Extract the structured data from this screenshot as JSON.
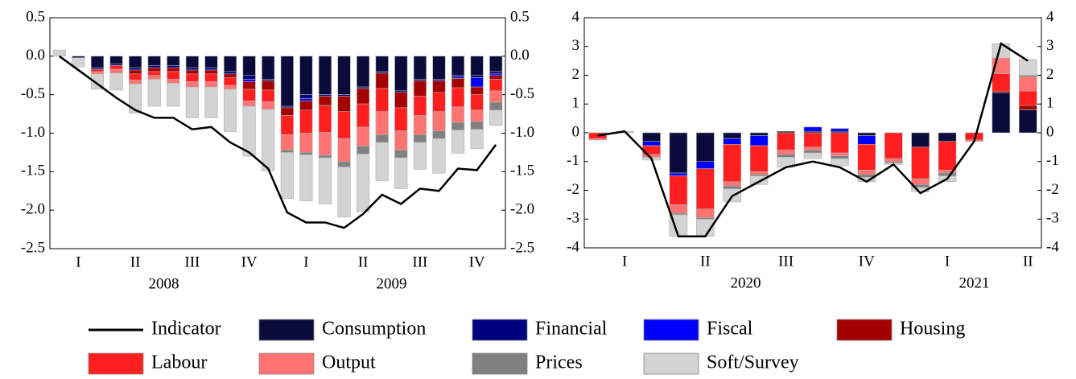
{
  "chart_data": [
    {
      "type": "bar",
      "stacked": true,
      "categories": [
        null,
        "I",
        null,
        null,
        "II",
        null,
        null,
        "III",
        null,
        null,
        "IV",
        null,
        null,
        "I",
        null,
        null,
        "II",
        null,
        null,
        "III",
        null,
        null,
        "IV",
        null
      ],
      "years": [
        "2008",
        "2009"
      ],
      "ylim": [
        -2.5,
        0.5
      ],
      "yticks": [
        {
          "value": -2.5,
          "label": "-2.5"
        },
        {
          "value": -2,
          "label": "-2.0"
        },
        {
          "value": -1.5,
          "label": "-1.5"
        },
        {
          "value": -1,
          "label": "-1.0"
        },
        {
          "value": -0.5,
          "label": "-0.5"
        },
        {
          "value": 0,
          "label": "0.0"
        },
        {
          "value": 0.5,
          "label": "0.5"
        }
      ],
      "series": [
        {
          "name": "Indicator",
          "type": "line",
          "color": "#000000",
          "values": [
            0,
            -0.18,
            -0.36,
            -0.54,
            -0.7,
            -0.8,
            -0.8,
            -0.95,
            -0.92,
            -1.12,
            -1.25,
            -1.46,
            -2.03,
            -2.16,
            -2.16,
            -2.23,
            -2.05,
            -1.8,
            -1.92,
            -1.72,
            -1.75,
            -1.46,
            -1.48,
            -1.15
          ]
        },
        {
          "name": "Consumption",
          "color": "#0b0b3b",
          "values": [
            0,
            -0.02,
            -0.15,
            -0.1,
            -0.15,
            -0.12,
            -0.12,
            -0.15,
            -0.15,
            -0.2,
            -0.25,
            -0.3,
            -0.65,
            -0.5,
            -0.5,
            -0.5,
            -0.4,
            -0.2,
            -0.45,
            -0.3,
            -0.3,
            -0.25,
            -0.25,
            -0.2
          ]
        },
        {
          "name": "Financial",
          "color": "#00007f",
          "values": [
            0,
            0,
            -0.02,
            -0.02,
            -0.03,
            -0.03,
            -0.03,
            -0.03,
            -0.03,
            -0.03,
            -0.05,
            -0.02,
            -0.02,
            -0.05,
            -0.02,
            -0.02,
            -0.02,
            -0.02,
            -0.02,
            -0.02,
            -0.02,
            -0.02,
            -0.03,
            -0.03
          ]
        },
        {
          "name": "Fiscal",
          "color": "#0000ff",
          "values": [
            0,
            0,
            0,
            0,
            0,
            0,
            0,
            0,
            0,
            0,
            -0.03,
            0,
            0,
            -0.03,
            0,
            0,
            0,
            0,
            0,
            0,
            0,
            -0.02,
            -0.12,
            -0.02
          ]
        },
        {
          "name": "Housing",
          "color": "#a50000",
          "values": [
            0,
            0,
            0,
            0,
            -0.05,
            -0.05,
            -0.05,
            -0.05,
            -0.05,
            -0.05,
            -0.1,
            -0.12,
            -0.1,
            -0.12,
            -0.12,
            -0.2,
            -0.2,
            -0.2,
            -0.2,
            -0.2,
            -0.15,
            -0.12,
            -0.1,
            -0.05
          ]
        },
        {
          "name": "Labour",
          "color": "#ff1f1f",
          "values": [
            0,
            0,
            -0.03,
            -0.05,
            -0.08,
            -0.05,
            -0.1,
            -0.1,
            -0.1,
            -0.1,
            -0.15,
            -0.15,
            -0.25,
            -0.3,
            -0.35,
            -0.35,
            -0.3,
            -0.3,
            -0.3,
            -0.25,
            -0.25,
            -0.25,
            -0.2,
            -0.15
          ]
        },
        {
          "name": "Output",
          "color": "#ff7373",
          "values": [
            0,
            0,
            -0.03,
            -0.05,
            -0.05,
            -0.05,
            -0.05,
            -0.07,
            -0.07,
            -0.05,
            -0.07,
            -0.1,
            -0.2,
            -0.25,
            -0.3,
            -0.3,
            -0.25,
            -0.3,
            -0.25,
            -0.25,
            -0.25,
            -0.2,
            -0.15,
            -0.15
          ]
        },
        {
          "name": "Prices",
          "color": "#808080",
          "values": [
            0,
            0,
            0,
            0,
            0,
            0,
            0,
            0,
            0,
            0,
            0,
            0,
            -0.03,
            -0.03,
            -0.03,
            -0.07,
            -0.1,
            -0.1,
            -0.1,
            -0.1,
            -0.1,
            -0.1,
            -0.1,
            -0.1
          ]
        },
        {
          "name": "Soft/Survey",
          "color": "#d3d3d3",
          "values": [
            0.08,
            -0.12,
            -0.2,
            -0.22,
            -0.38,
            -0.35,
            -0.3,
            -0.4,
            -0.4,
            -0.55,
            -0.65,
            -0.8,
            -0.6,
            -0.6,
            -0.6,
            -0.65,
            -0.75,
            -0.5,
            -0.4,
            -0.35,
            -0.45,
            -0.3,
            -0.25,
            -0.2
          ]
        }
      ]
    },
    {
      "type": "bar",
      "stacked": true,
      "categories": [
        null,
        "I",
        null,
        null,
        "II",
        null,
        null,
        "III",
        null,
        null,
        "IV",
        null,
        null,
        "I",
        null,
        null,
        "II"
      ],
      "years": [
        "2020",
        "2021"
      ],
      "ylim": [
        -4,
        4
      ],
      "yticks": [
        -4,
        -3,
        -2,
        -1,
        0,
        1,
        2,
        3,
        4
      ],
      "series": [
        {
          "name": "Indicator",
          "type": "line",
          "color": "#000000",
          "values": [
            -0.1,
            0.05,
            -0.9,
            -3.6,
            -3.6,
            -2.2,
            -1.7,
            -1.2,
            -1.0,
            -1.2,
            -1.7,
            -1.1,
            -2.1,
            -1.6,
            -0.3,
            3.1,
            2.5
          ]
        },
        {
          "name": "Consumption",
          "color": "#0b0b3b",
          "values": [
            0,
            0,
            -0.3,
            -1.4,
            -1.0,
            -0.2,
            -0.1,
            0.05,
            0.05,
            0.05,
            -0.1,
            0,
            -0.5,
            -0.3,
            0,
            1.4,
            0.8
          ]
        },
        {
          "name": "Financial",
          "color": "#00007f",
          "values": [
            0,
            0,
            0,
            0,
            0,
            0,
            0,
            0,
            0,
            0,
            0,
            0,
            0,
            0,
            0,
            0,
            0
          ]
        },
        {
          "name": "Fiscal",
          "color": "#0000ff",
          "values": [
            0,
            0,
            -0.15,
            -0.1,
            -0.25,
            -0.2,
            -0.35,
            0,
            0.15,
            0.1,
            -0.3,
            0,
            0,
            0,
            0,
            0,
            0
          ]
        },
        {
          "name": "Housing",
          "color": "#a50000",
          "values": [
            0,
            0,
            0,
            0,
            0,
            0,
            0,
            0,
            0,
            0,
            0,
            0,
            0,
            0,
            0,
            0.05,
            0.15
          ]
        },
        {
          "name": "Labour",
          "color": "#ff1f1f",
          "values": [
            -0.2,
            0,
            -0.3,
            -1.0,
            -1.4,
            -1.3,
            -0.9,
            -0.6,
            -0.5,
            -0.7,
            -0.9,
            -0.9,
            -1.1,
            -1.0,
            -0.25,
            0.6,
            0.5
          ]
        },
        {
          "name": "Output",
          "color": "#ff7373",
          "values": [
            -0.05,
            0,
            -0.1,
            -0.3,
            -0.3,
            -0.15,
            -0.1,
            -0.15,
            -0.1,
            -0.1,
            -0.15,
            -0.1,
            -0.2,
            -0.1,
            -0.05,
            0.55,
            0.5
          ]
        },
        {
          "name": "Prices",
          "color": "#808080",
          "values": [
            0,
            0,
            0,
            -0.05,
            -0.05,
            -0.1,
            -0.05,
            -0.1,
            -0.1,
            -0.1,
            -0.1,
            -0.05,
            -0.1,
            -0.1,
            0,
            0,
            0.05
          ]
        },
        {
          "name": "Soft/Survey",
          "color": "#d3d3d3",
          "values": [
            0,
            0.05,
            -0.1,
            -0.75,
            -0.6,
            -0.45,
            -0.3,
            -0.35,
            -0.2,
            -0.25,
            -0.15,
            -0.05,
            -0.15,
            -0.2,
            0,
            0.5,
            0.55
          ]
        }
      ]
    }
  ]
}
